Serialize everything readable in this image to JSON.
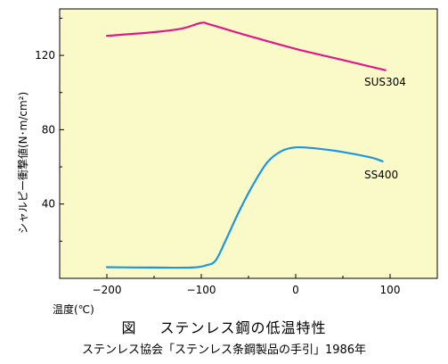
{
  "chart_data": {
    "type": "line",
    "xlabel": "温度(℃)",
    "ylabel": "シャルピー衝撃値(N･m/cm²)",
    "xlim": [
      -250,
      150
    ],
    "ylim": [
      0,
      145
    ],
    "xticks": [
      -200,
      -100,
      0,
      100
    ],
    "yticks": [
      40,
      80,
      120
    ],
    "xtick_labels": [
      "−200",
      "−100",
      "0",
      "100"
    ],
    "ytick_labels": [
      "40",
      "80",
      "120"
    ],
    "grid": false,
    "plot_background": "#fafac8",
    "series": [
      {
        "name": "SUS304",
        "color": "#e0198a",
        "x": [
          -200,
          -150,
          -120,
          -100,
          -90,
          -50,
          0,
          50,
          95
        ],
        "y": [
          130.5,
          132.5,
          134.5,
          137.5,
          136.5,
          130.5,
          123.5,
          117.5,
          112.0
        ]
      },
      {
        "name": "SS400",
        "color": "#1e96dc",
        "x": [
          -200,
          -150,
          -110,
          -95,
          -85,
          -75,
          -60,
          -45,
          -30,
          -15,
          0,
          20,
          50,
          80,
          92
        ],
        "y": [
          6.0,
          5.8,
          5.8,
          7.0,
          9.5,
          19.5,
          36.0,
          50.5,
          62.5,
          68.5,
          70.5,
          70.0,
          68.0,
          65.0,
          63.0
        ]
      }
    ]
  },
  "caption": {
    "figure_label": "図",
    "title": "ステンレス鋼の低温特性",
    "source": "ステンレス協会「ステンレス条鋼製品の手引」1986年"
  }
}
